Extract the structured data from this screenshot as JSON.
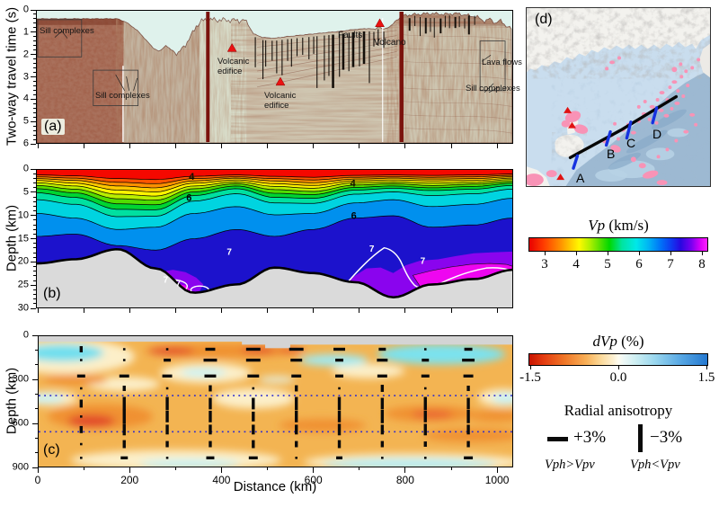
{
  "figure": {
    "panel_a": {
      "tag": "(a)",
      "ylabel": "Two-way travel time (s)",
      "yticks": [
        "0",
        "1",
        "2",
        "3",
        "4",
        "5",
        "6"
      ],
      "labels": {
        "sill1": "Sill complexes",
        "sill2": "Sill complexes",
        "sill3": "Sill complexes",
        "lava": "Lava flows",
        "faults": "Faults",
        "volcano": "Volcano",
        "edifice1": "Volcanic edifice",
        "edifice2": "Volcanic edifice"
      }
    },
    "panel_b": {
      "tag": "(b)",
      "ylabel": "Depth (km)",
      "yticks": [
        "0",
        "5",
        "10",
        "15",
        "20",
        "25",
        "30"
      ],
      "contour_labels": {
        "c4": "4",
        "c6": "6",
        "c7": "7"
      }
    },
    "panel_c": {
      "tag": "(c)",
      "ylabel": "Depth (km)",
      "yticks": [
        "0",
        "300",
        "600",
        "900"
      ],
      "xticks": [
        "0",
        "200",
        "400",
        "600",
        "800",
        "1000"
      ],
      "xlabel": "Distance (km)",
      "discontinuity_depths_km": [
        410,
        660
      ]
    },
    "panel_d": {
      "tag": "(d)",
      "profile_points": [
        "A",
        "B",
        "C",
        "D"
      ]
    },
    "legend": {
      "vp_var": "Vp",
      "vp_unit": " (km/s)",
      "vp_ticks": [
        "3",
        "4",
        "5",
        "6",
        "7",
        "8"
      ],
      "dvp_var": "dVp",
      "dvp_unit": " (%)",
      "dvp_ticks": [
        "-1.5",
        "0.0",
        "1.5"
      ],
      "anis_title": "Radial anisotropy",
      "anis_plus": "+3%",
      "anis_minus": "−3%",
      "anis_plus_sub": "Vph>Vpv",
      "anis_minus_sub": "Vph<Vpv"
    },
    "colors": {
      "water": "#dff2ec",
      "moho_gray": "#dadada",
      "aniso_dotted_blue": "#2a2ad0",
      "volcano_red": "#ea1212",
      "map_pink": "#f893b6",
      "map_sea": "#c9ddee",
      "map_deep_sea": "#9db9d2"
    }
  }
}
